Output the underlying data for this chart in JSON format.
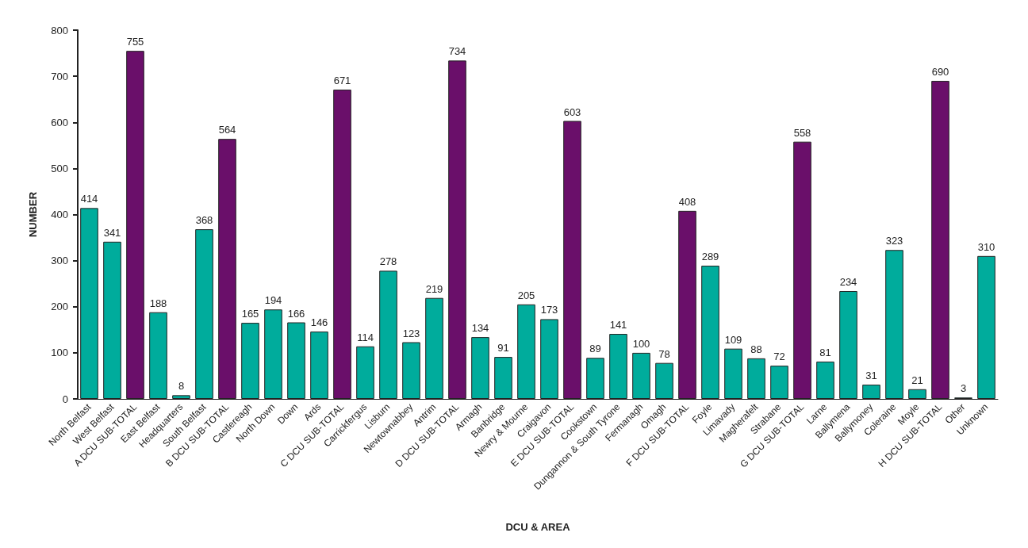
{
  "chart_data": {
    "type": "bar",
    "xlabel": "DCU & AREA",
    "ylabel": "NUMBER",
    "categories": [
      "North Belfast",
      "West Belfast",
      "A DCU SUB-TOTAL",
      "East Belfast",
      "Headquarters",
      "South Belfast",
      "B DCU SUB-TOTAL",
      "Castlereagh",
      "North Down",
      "Down",
      "Ards",
      "C DCU SUB-TOTAL",
      "Carrickfergus",
      "Lisburn",
      "Newtownabbey",
      "Antrim",
      "D DCU SUB-TOTAL",
      "Armagh",
      "Banbridge",
      "Newry & Mourne",
      "Craigavon",
      "E DCU SUB-TOTAL",
      "Cookstown",
      "Dungannon & South Tyrone",
      "Fermanagh",
      "Omagh",
      "F DCU SUB-TOTAL",
      "Foyle",
      "Limavady",
      "Magherafelt",
      "Strabane",
      "G DCU SUB-TOTAL",
      "Larne",
      "Ballymena",
      "Ballymoney",
      "Coleraine",
      "Moyle",
      "H DCU SUB-TOTAL",
      "Other",
      "Unknown"
    ],
    "values": [
      414,
      341,
      755,
      188,
      8,
      368,
      564,
      165,
      194,
      166,
      146,
      671,
      114,
      278,
      123,
      219,
      734,
      134,
      91,
      205,
      173,
      603,
      89,
      141,
      100,
      78,
      408,
      289,
      109,
      88,
      72,
      558,
      81,
      234,
      31,
      323,
      21,
      690,
      3,
      310
    ],
    "colors": [
      "#00ac9c",
      "#00ac9c",
      "#6a0f6a",
      "#00ac9c",
      "#00ac9c",
      "#00ac9c",
      "#6a0f6a",
      "#00ac9c",
      "#00ac9c",
      "#00ac9c",
      "#00ac9c",
      "#6a0f6a",
      "#00ac9c",
      "#00ac9c",
      "#00ac9c",
      "#00ac9c",
      "#6a0f6a",
      "#00ac9c",
      "#00ac9c",
      "#00ac9c",
      "#00ac9c",
      "#6a0f6a",
      "#00ac9c",
      "#00ac9c",
      "#00ac9c",
      "#00ac9c",
      "#6a0f6a",
      "#00ac9c",
      "#00ac9c",
      "#00ac9c",
      "#00ac9c",
      "#6a0f6a",
      "#00ac9c",
      "#00ac9c",
      "#00ac9c",
      "#00ac9c",
      "#00ac9c",
      "#6a0f6a",
      "#00ac9c",
      "#00ac9c"
    ],
    "ylim": [
      0,
      800
    ],
    "yticks": [
      0,
      100,
      200,
      300,
      400,
      500,
      600,
      700,
      800
    ],
    "data_labels": true,
    "grid": false
  }
}
